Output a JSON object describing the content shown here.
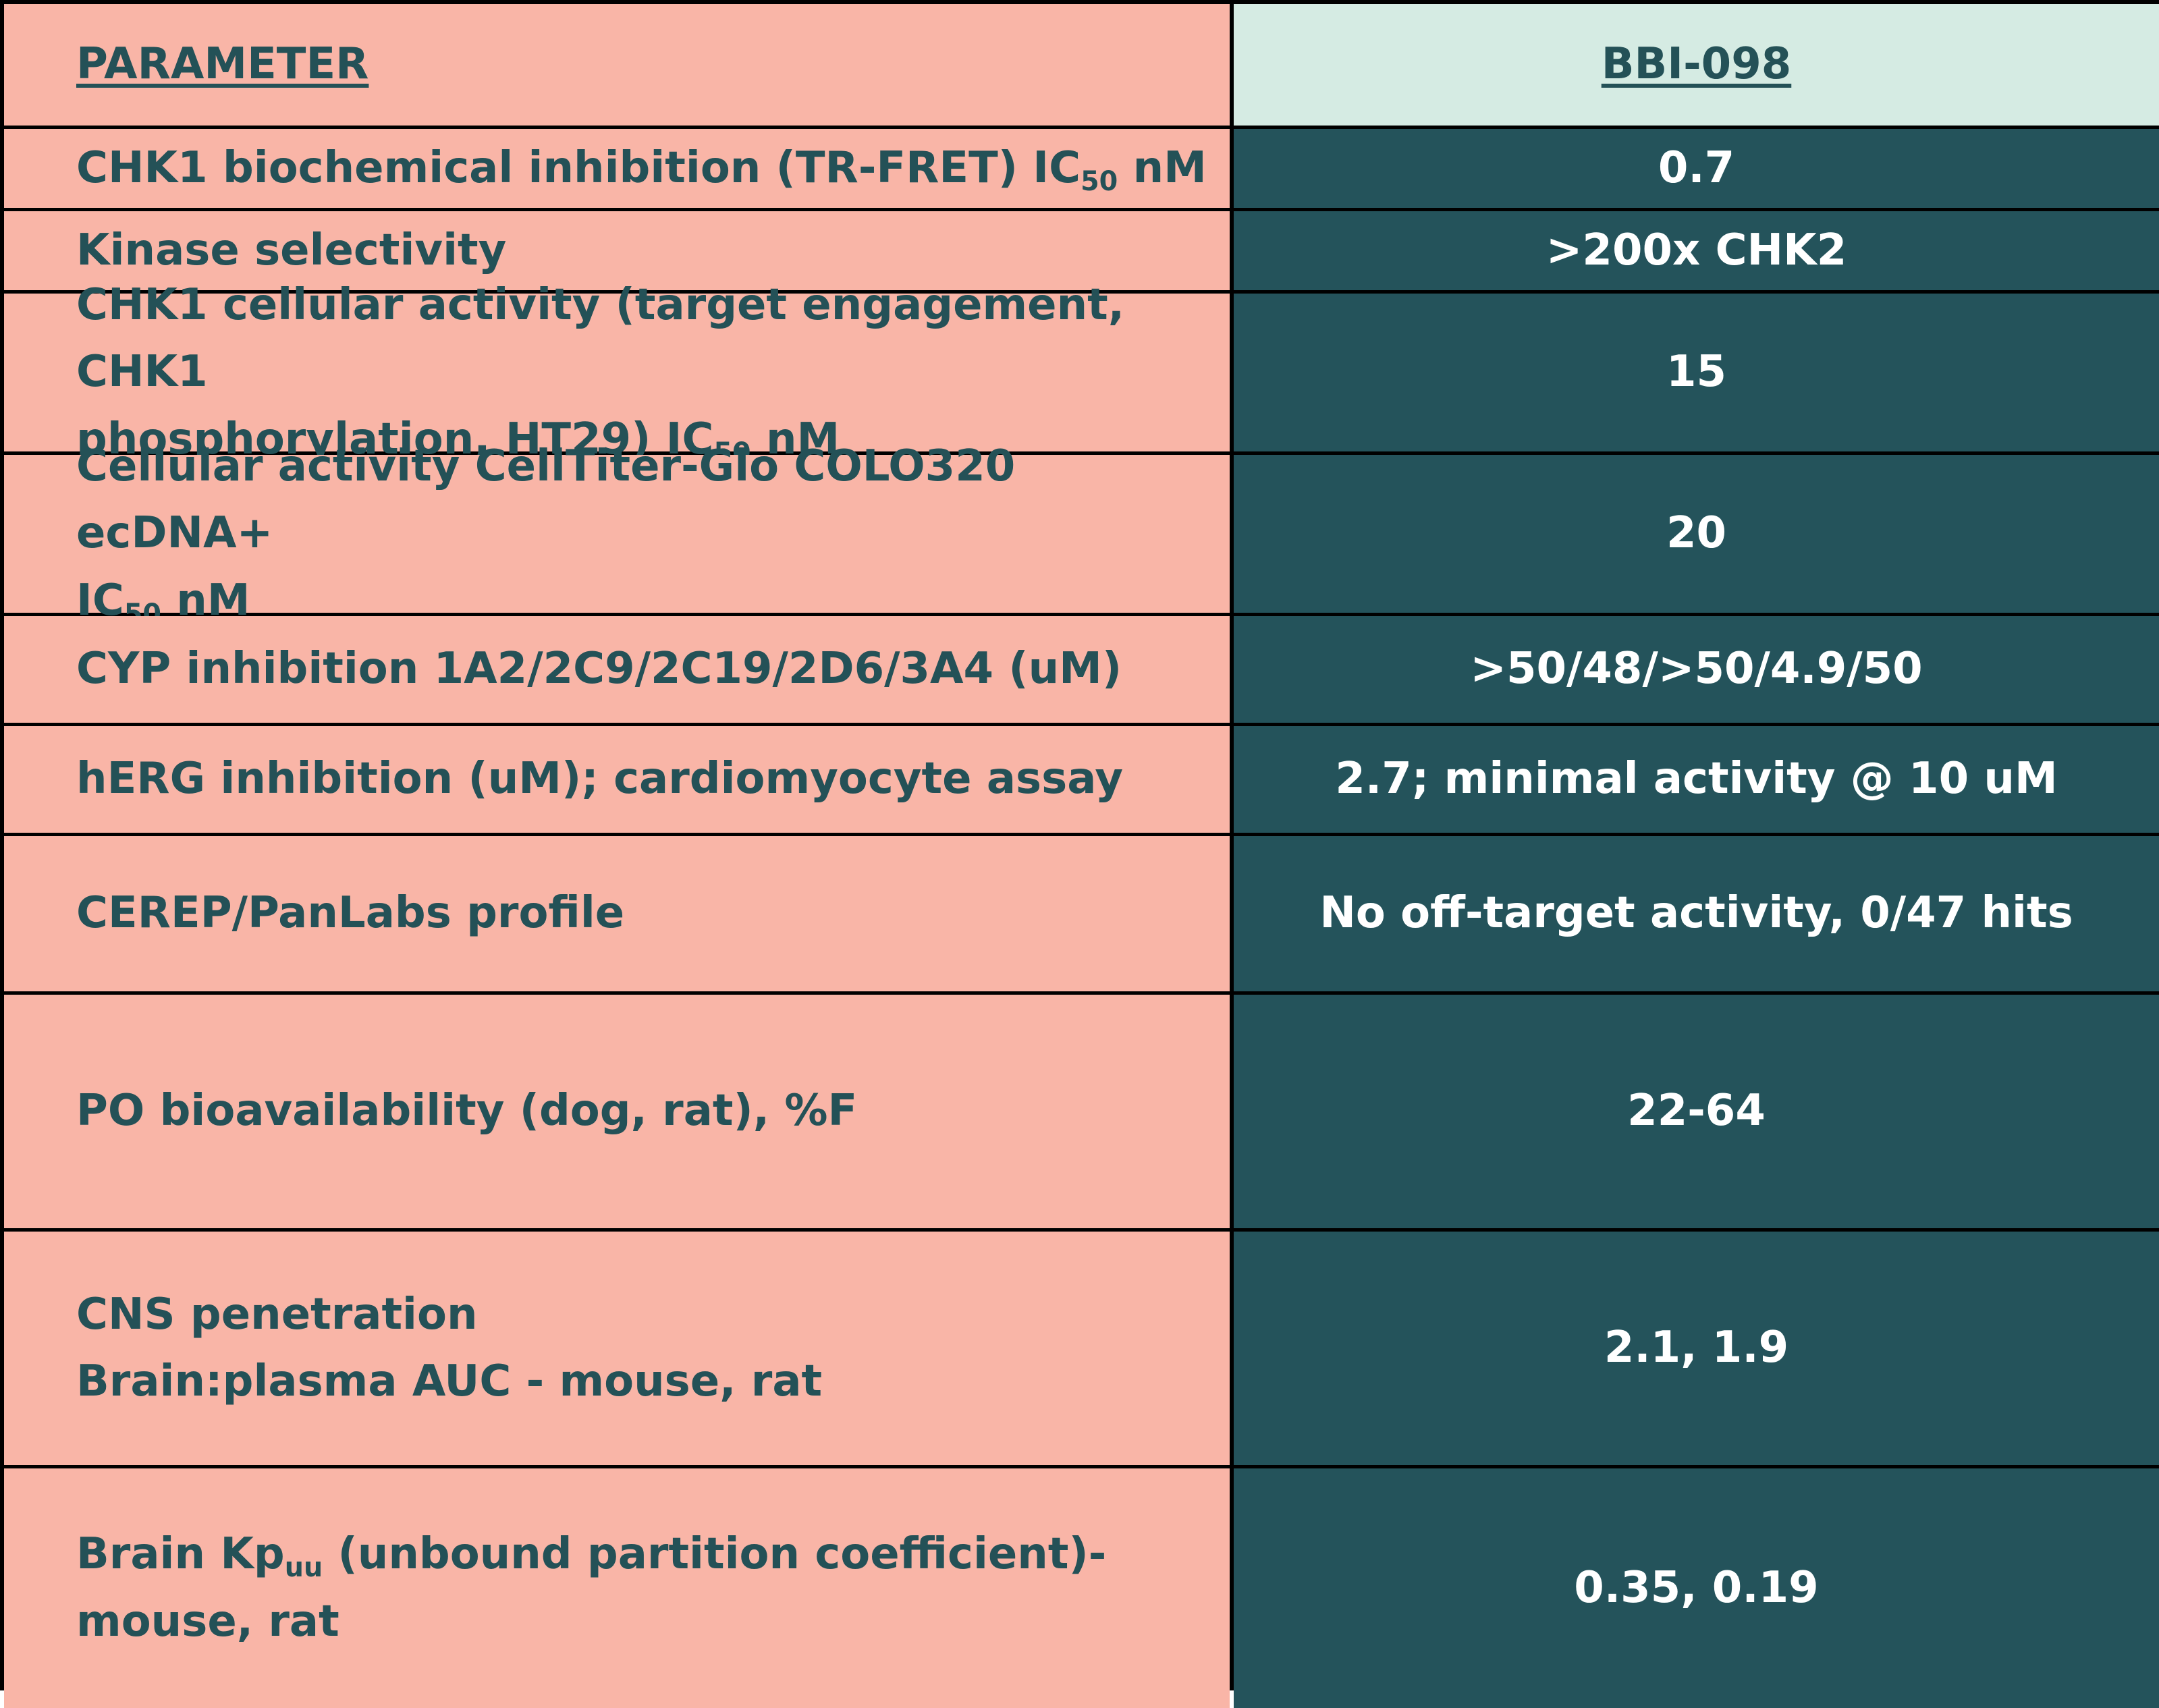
{
  "header": {
    "parameter": "PARAMETER",
    "compound": "BBI-098"
  },
  "rows": [
    {
      "param": {
        "pre": "CHK1 biochemical inhibition (TR-FRET) IC",
        "sub": "50",
        "post": " nM"
      },
      "value": "0.7"
    },
    {
      "param": {
        "text": "Kinase selectivity"
      },
      "value": ">200x CHK2"
    },
    {
      "param": {
        "line1": "CHK1 cellular activity (target engagement, CHK1",
        "pre": "phosphorylation, HT29) IC",
        "sub": "50",
        "post": " nM"
      },
      "value": "15"
    },
    {
      "param": {
        "line1": "Cellular activity CellTiter-Glo COLO320 ecDNA+",
        "pre": "IC",
        "sub": "50",
        "post": " nM"
      },
      "value": "20"
    },
    {
      "param": {
        "text": "CYP inhibition 1A2/2C9/2C19/2D6/3A4 (uM)"
      },
      "value": ">50/48/>50/4.9/50"
    },
    {
      "param": {
        "text": "hERG inhibition (uM); cardiomyocyte assay"
      },
      "value": "2.7; minimal activity @ 10 uM"
    },
    {
      "param": {
        "text": "CEREP/PanLabs profile"
      },
      "value": "No off-target activity, 0/47 hits"
    },
    {
      "param": {
        "text": "PO bioavailability (dog, rat), %F"
      },
      "value": "22-64"
    },
    {
      "param": {
        "line1": "CNS penetration",
        "line2": "Brain:plasma AUC - mouse, rat"
      },
      "value": "2.1, 1.9"
    },
    {
      "param": {
        "pre": "Brain Kp",
        "sub": "uu",
        "post": " (unbound partition coefficient)-",
        "line2": "mouse, rat"
      },
      "value": "0.35, 0.19"
    }
  ],
  "colors": {
    "param_bg": "#f9b5a7",
    "header_value_bg": "#d5ebe3",
    "value_bg": "#24535b",
    "param_text": "#245157",
    "value_text": "#ffffff"
  }
}
